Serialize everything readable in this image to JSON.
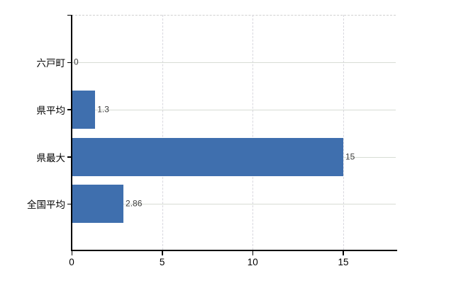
{
  "chart_data": {
    "type": "bar",
    "orientation": "horizontal",
    "title": "",
    "categories": [
      "六戸町",
      "県平均",
      "県最大",
      "全国平均"
    ],
    "values": [
      0,
      1.3,
      15,
      2.86
    ],
    "value_labels": [
      "0",
      "1.3",
      "15",
      "2.86"
    ],
    "x_ticks": [
      0,
      5,
      10,
      15
    ],
    "x_tick_labels": [
      "0",
      "5",
      "10",
      "15"
    ],
    "xlim": [
      0,
      17.9
    ],
    "ylabel": "",
    "xlabel": "",
    "grid": "horizontal-solid, vertical-dashed, top-border-dashed",
    "legend": "none",
    "bar_color": "#3f6fae",
    "axis_color": "#000000",
    "hgrid_color": "#d7dcd4",
    "vgrid_color": "#d8d7de",
    "top_border_color": "#cfcfcf",
    "value_label_color": "#3d3d3d",
    "tick_label_color": "#000000",
    "background_color": "#ffffff"
  }
}
